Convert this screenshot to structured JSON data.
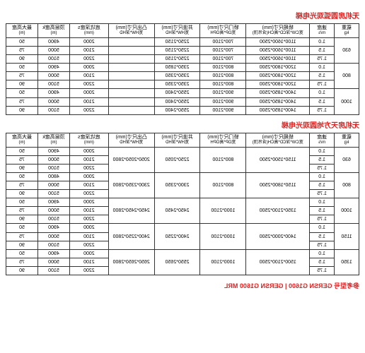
{
  "titles": {
    "table1": "无机房圆弧观光电梯",
    "table2": "无机房天方地圆观光电梯",
    "footer": "参考型号 GERSN G1600 | GERSN G1600 MRL"
  },
  "headers": {
    "h1_a": "载重",
    "h1_b": "kg",
    "h2_a": "速度",
    "h2_b": "m/s",
    "h3_a": "轿厢尺寸(mm)",
    "h3_b": "宽CW*深CD*高CH(含吊顶)",
    "h4_a": "轿门尺寸(mm)",
    "h4_b": "宽OP*高OPH",
    "h5_a": "井道尺寸(mm)",
    "h5_b": "宽HW*深HD",
    "h6_a": "凸出尺寸(mm)",
    "h6_b": "宽HW*深HD",
    "h7_a": "底坑深度s",
    "h7_b": "(mm)",
    "h8_a": "顶层高度k",
    "h8_b": "(m)",
    "h9_a": "最大高度",
    "h9_b": "(m)"
  },
  "t1": {
    "r1": [
      "630",
      "1.0",
      "1100*1600*2500",
      "700*2100",
      "2250*2150",
      "",
      "2000",
      "4900",
      "50"
    ],
    "r2": [
      "",
      "1.5",
      "1100*1600*2500",
      "700*2100",
      "2250*2150",
      "",
      "2100",
      "5000",
      "75"
    ],
    "r3": [
      "",
      "1.75",
      "1100*1600*2500",
      "700*2100",
      "2250*2150",
      "",
      "2200",
      "5100",
      "90"
    ],
    "r4": [
      "800",
      "1.0",
      "1200*1800*2500",
      "800*2100",
      "2350*1850",
      "",
      "2000",
      "4900",
      "50"
    ],
    "r5": [
      "",
      "1.5",
      "1200*1800*2500",
      "800*2100",
      "2350*2350",
      "",
      "2100",
      "5000",
      "75"
    ],
    "r6": [
      "",
      "1.75",
      "1200*1800*2500",
      "800*2100",
      "2350*2350",
      "",
      "2200",
      "5100",
      "90"
    ],
    "r7": [
      "1000",
      "1.0",
      "1400*1850*2500",
      "900*2100",
      "2550*2400",
      "",
      "2000",
      "4900",
      "50"
    ],
    "r8": [
      "",
      "1.5",
      "1400*1850*2500",
      "900*2100",
      "2550*2400",
      "",
      "2100",
      "5000",
      "75"
    ],
    "r9": [
      "",
      "1.75",
      "1400*1850*2500",
      "900*2100",
      "2550*2400",
      "",
      "2200",
      "5100",
      "90"
    ]
  },
  "t2": {
    "r1": [
      "630",
      "1.0",
      "1150*1500*2500",
      "800*2100",
      "2250*2050",
      "2050*2050*2800",
      "2000",
      "4900",
      "50"
    ],
    "r2": [
      "",
      "1.5",
      "",
      "",
      "",
      "",
      "2100",
      "5000",
      "75"
    ],
    "r3": [
      "",
      "1.75",
      "",
      "",
      "",
      "",
      "2200",
      "5100",
      "90"
    ],
    "r4": [
      "800",
      "1.0",
      "1150*1800*2500",
      "800*2100",
      "2300*2350",
      "2300*2350*2800",
      "2000",
      "4800",
      "50"
    ],
    "r5": [
      "",
      "1.5",
      "",
      "",
      "",
      "",
      "2100",
      "5000",
      "75"
    ],
    "r6": [
      "",
      "1.75",
      "",
      "",
      "",
      "",
      "2200",
      "5100",
      "90"
    ],
    "r7": [
      "1000",
      "1.0",
      "1350*2100*2500",
      "1000*2100",
      "2450*2450",
      "2450*2450*2800",
      "2000",
      "4900",
      "50"
    ],
    "r8": [
      "",
      "1.5",
      "",
      "",
      "",
      "",
      "2100",
      "5000",
      "75"
    ],
    "r9": [
      "",
      "1.75",
      "",
      "",
      "",
      "",
      "2200",
      "5100",
      "90"
    ],
    "r10": [
      "1150",
      "1.0",
      "1400*2000*2500",
      "1000*2100",
      "2400*2250",
      "2400*2250*2800",
      "2000",
      "4900",
      "50"
    ],
    "r11": [
      "",
      "1.5",
      "",
      "",
      "",
      "",
      "2100",
      "5000",
      "75"
    ],
    "r12": [
      "",
      "1.75",
      "",
      "",
      "",
      "",
      "2200",
      "5100",
      "90"
    ],
    "r13": [
      "1350",
      "1.0",
      "1500*2100*2500",
      "1000*2100",
      "2550*2650",
      "2650*2650*2800",
      "2000",
      "4900",
      "50"
    ],
    "r14": [
      "",
      "1.5",
      "",
      "",
      "",
      "",
      "2100",
      "5000",
      "75"
    ],
    "r15": [
      "",
      "1.75",
      "",
      "",
      "",
      "",
      "2200",
      "5100",
      "90"
    ]
  }
}
